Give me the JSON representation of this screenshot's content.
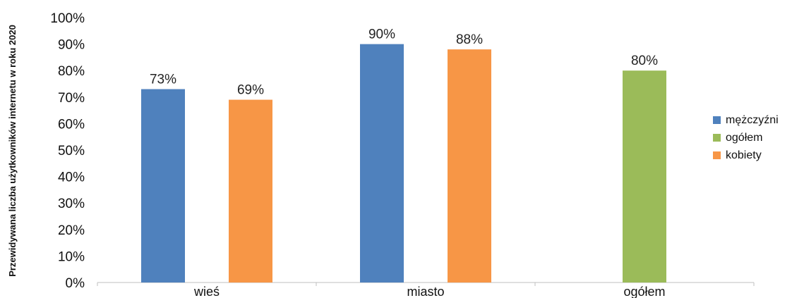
{
  "chart_data": {
    "type": "bar",
    "ylabel": "Przewidywana liczba użytkowników internetu w roku 2020",
    "xlabel": "",
    "ylim": [
      0,
      100
    ],
    "y_unit": "%",
    "y_ticks": [
      "0%",
      "10%",
      "20%",
      "30%",
      "40%",
      "50%",
      "60%",
      "70%",
      "80%",
      "90%",
      "100%"
    ],
    "grid": false,
    "legend_position": "right",
    "categories": [
      "wieś",
      "miasto",
      "ogółem"
    ],
    "series": [
      {
        "name": "mężczyźni",
        "color": "#4F81BD",
        "values": [
          73,
          90,
          null
        ],
        "labels": [
          "73%",
          "90%",
          ""
        ]
      },
      {
        "name": "ogółem",
        "color": "#9BBB59",
        "values": [
          null,
          null,
          80
        ],
        "labels": [
          "",
          "",
          "80%"
        ]
      },
      {
        "name": "kobiety",
        "color": "#F79646",
        "values": [
          69,
          88,
          null
        ],
        "labels": [
          "69%",
          "88%",
          ""
        ]
      }
    ]
  }
}
